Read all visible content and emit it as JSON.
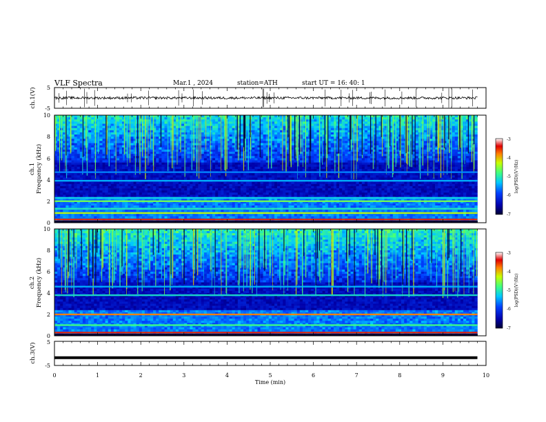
{
  "header": {
    "title": "VLF  Spectra",
    "date": "Mar.1   , 2024",
    "station": "station=ATH",
    "start": "start  UT  =    16: 40: 1"
  },
  "chart_data": [
    {
      "type": "line",
      "panel": "ch1-waveform",
      "ylabel": "ch.1(V)",
      "ylim": [
        -5,
        5
      ],
      "ytick_labels": [
        "5",
        "-5"
      ],
      "x_range_min": [
        0,
        9.8
      ],
      "trace_level": 0,
      "noise_amplitude": 0.6
    },
    {
      "type": "heatmap",
      "panel": "ch1-spectrogram",
      "ylabel": "ch.1\nFrequency (kHz)",
      "ylim": [
        0,
        10
      ],
      "ytick_labels": [
        "0",
        "2",
        "4",
        "6",
        "8",
        "10"
      ],
      "x_range_min": [
        0,
        9.8
      ],
      "bands_khz": [
        {
          "f": 0.3,
          "level": -3.5,
          "label": "strong red/magenta line"
        },
        {
          "f": 0.9,
          "level": -4.3
        },
        {
          "f": 1.3,
          "level": -5.0
        },
        {
          "f": 2.0,
          "level": -4.6
        },
        {
          "f": 2.3,
          "level": -5.2
        },
        {
          "f": 3.9,
          "level": -5.4
        },
        {
          "f": 4.7,
          "level": -5.6
        }
      ],
      "sferic_activity_above_khz": 5.5,
      "colorbar": {
        "label": "log(PSD)(V²/Hz)",
        "range": [
          -7,
          -3
        ],
        "tick_labels": [
          "-3",
          "-4",
          "-5",
          "-6",
          "-7"
        ]
      }
    },
    {
      "type": "heatmap",
      "panel": "ch2-spectrogram",
      "ylabel": "ch.2\nFrequency (kHz)",
      "ylim": [
        0,
        10
      ],
      "ytick_labels": [
        "0",
        "2",
        "4",
        "6",
        "8",
        "10"
      ],
      "x_range_min": [
        0,
        9.8
      ],
      "bands_khz": [
        {
          "f": 0.3,
          "level": -3.5
        },
        {
          "f": 1.0,
          "level": -4.8
        },
        {
          "f": 2.0,
          "level": -3.8,
          "label": "strong red line"
        },
        {
          "f": 3.8,
          "level": -5.1
        },
        {
          "f": 4.6,
          "level": -5.4
        }
      ],
      "sferic_activity_above_khz": 5.0,
      "colorbar": {
        "label": "log(PSD)(V²/Hz)",
        "range": [
          -7,
          -3
        ],
        "tick_labels": [
          "-3",
          "-4",
          "-5",
          "-6",
          "-7"
        ]
      }
    },
    {
      "type": "line",
      "panel": "ch3-waveform",
      "ylabel": "ch.3(V)",
      "ylim": [
        -5,
        5
      ],
      "ytick_labels": [
        "5",
        "0",
        "-5"
      ],
      "x_range_min": [
        0,
        9.8
      ],
      "trace_level": -1.8
    }
  ],
  "x_axis": {
    "label": "Time  (min)",
    "range": [
      0,
      10
    ],
    "tick_labels": [
      "0",
      "1",
      "2",
      "3",
      "4",
      "5",
      "6",
      "7",
      "8",
      "9",
      "10"
    ]
  }
}
